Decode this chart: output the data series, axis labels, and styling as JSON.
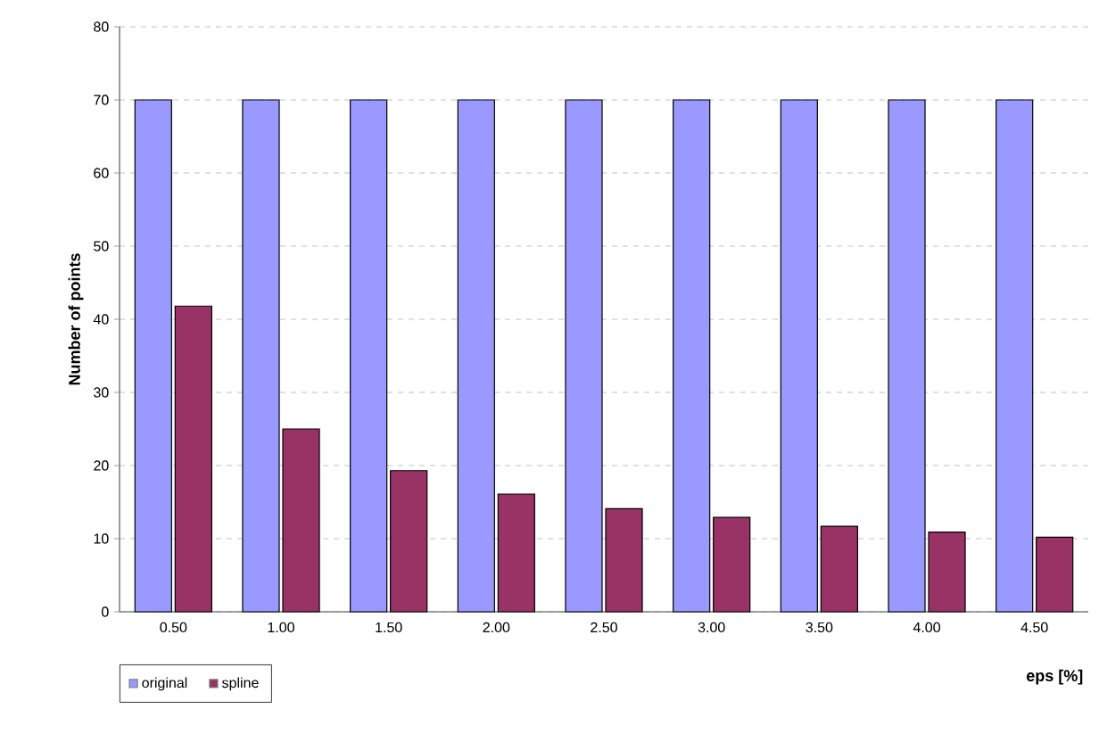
{
  "chart_data": {
    "type": "bar",
    "xlabel": "eps [%]",
    "ylabel": "Number of points",
    "categories": [
      "0.50",
      "1.00",
      "1.50",
      "2.00",
      "2.50",
      "3.00",
      "3.50",
      "4.00",
      "4.50"
    ],
    "series": [
      {
        "name": "original",
        "color": "#9999ff",
        "values": [
          70,
          70,
          70,
          70,
          70,
          70,
          70,
          70,
          70
        ]
      },
      {
        "name": "spline",
        "color": "#993366",
        "values": [
          41.8,
          25,
          19.3,
          16.1,
          14.1,
          12.9,
          11.7,
          10.9,
          10.2
        ]
      }
    ],
    "ylim": [
      0,
      80
    ],
    "yticks": [
      0,
      10,
      20,
      30,
      40,
      50,
      60,
      70,
      80
    ],
    "grid": "y",
    "legend": "bottom left"
  }
}
